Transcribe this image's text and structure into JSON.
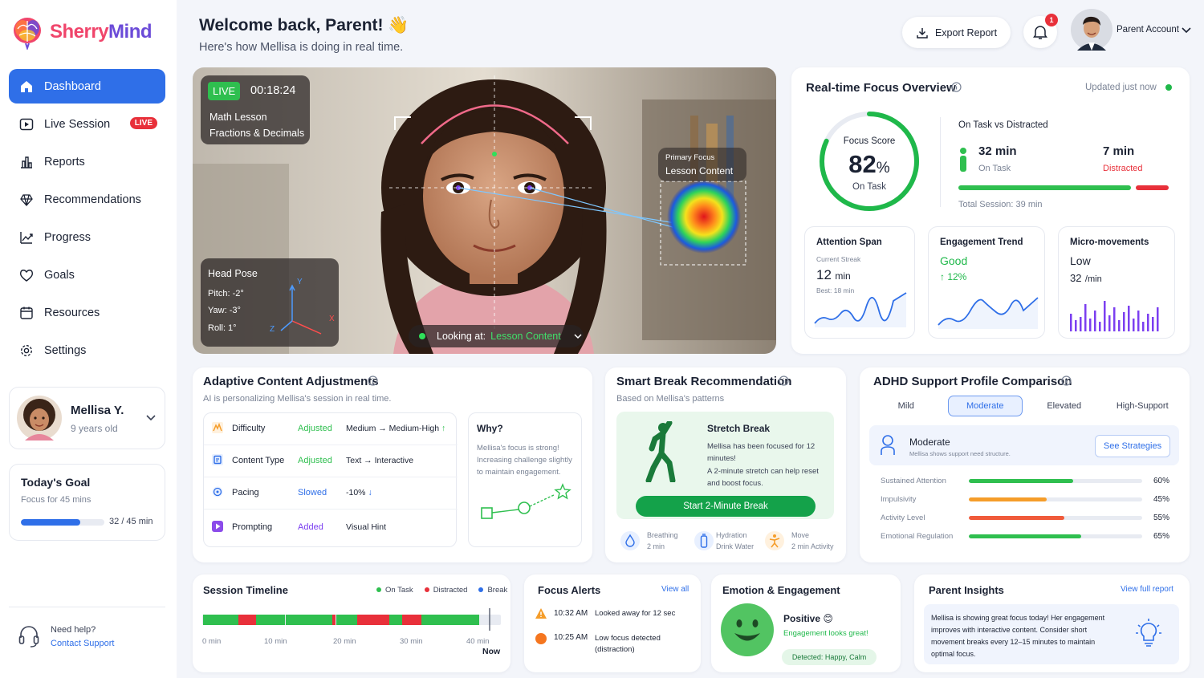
{
  "app": {
    "name_a": "Sherry",
    "name_b": "Mind"
  },
  "nav": {
    "dashboard": "Dashboard",
    "live_session": "Live Session",
    "live_badge": "LIVE",
    "reports": "Reports",
    "recommendations": "Recommendations",
    "progress": "Progress",
    "goals": "Goals",
    "resources": "Resources",
    "settings": "Settings"
  },
  "child": {
    "name": "Mellisa Y.",
    "age": "9 years old"
  },
  "today_goal": {
    "title": "Today's Goal",
    "subtitle": "Focus for 45 mins",
    "current": "32",
    "total": "/ 45 min",
    "progress": 0.71
  },
  "help": {
    "question": "Need help?",
    "link": "Contact Support"
  },
  "header": {
    "title": "Welcome back, Parent! 👋",
    "subtitle": "Here's how Mellisa is doing in real time.",
    "export": "Export Report",
    "notif_count": "1",
    "account": "Parent Account"
  },
  "video": {
    "live": "LIVE",
    "timer": "00:18:24",
    "lesson": "Math Lesson",
    "topic": "Fractions & Decimals",
    "primary_focus_label": "Primary Focus",
    "primary_focus_value": "Lesson Content",
    "head_pose_title": "Head Pose",
    "pitch": "Pitch: -2°",
    "yaw": "Yaw: -3°",
    "roll": "Roll: 1°",
    "axis_y": "Y",
    "axis_x": "X",
    "axis_z": "Z",
    "looking_label": "Looking at:",
    "looking_value": "Lesson Content"
  },
  "focus_overview": {
    "title": "Real-time Focus Overview",
    "updated": "Updated just now",
    "score_label": "Focus Score",
    "score": "82",
    "score_unit": "%",
    "score_fraction": 0.82,
    "score_state": "On Task",
    "vs_title": "On Task vs Distracted",
    "on_task_value": "32 min",
    "on_task_label": "On Task",
    "distracted_value": "7 min",
    "distracted_label": "Distracted",
    "on_task_fraction": 0.82,
    "total": "Total Session: 39 min"
  },
  "attention": {
    "title": "Attention Span",
    "streak_label": "Current Streak",
    "value": "12",
    "unit": "min",
    "best": "Best: 18 min"
  },
  "engagement": {
    "title": "Engagement Trend",
    "value": "Good",
    "change": "↑ 12%"
  },
  "micro": {
    "title": "Micro-movements",
    "value": "Low",
    "rate": "32",
    "rate_unit": "/min"
  },
  "adaptive": {
    "title": "Adaptive Content Adjustments",
    "subtitle": "AI is personalizing Mellisa's session in real time.",
    "rows": [
      {
        "label": "Difficulty",
        "status": "Adjusted",
        "value": "Medium → Medium-High",
        "arrow": "↑"
      },
      {
        "label": "Content Type",
        "status": "Adjusted",
        "value": "Text → Interactive",
        "arrow": ""
      },
      {
        "label": "Pacing",
        "status": "Slowed",
        "value": "-10%",
        "arrow": "↓"
      },
      {
        "label": "Prompting",
        "status": "Added",
        "value": "Visual Hint",
        "arrow": ""
      }
    ],
    "why_title": "Why?",
    "why_text": "Mellisa's focus is strong! Increasing challenge slightly to maintain engagement."
  },
  "smart_break": {
    "title": "Smart Break Recommendation",
    "subtitle": "Based on Mellisa's patterns",
    "card_title": "Stretch Break",
    "card_text1": "Mellisa has been focused for 12 minutes!",
    "card_text2": "A 2-minute stretch can help reset and boost focus.",
    "button": "Start 2-Minute Break",
    "options": [
      {
        "title": "Breathing",
        "sub": "2 min"
      },
      {
        "title": "Hydration",
        "sub": "Drink Water"
      },
      {
        "title": "Move",
        "sub": "2 min Activity"
      }
    ]
  },
  "adhd": {
    "title": "ADHD Support Profile Comparison",
    "tabs": [
      "Mild",
      "Moderate",
      "Elevated",
      "High-Support"
    ],
    "selected": "Moderate",
    "profile_desc": "Mellisa shows support need structure.",
    "see_strategies": "See Strategies",
    "metrics": [
      {
        "label": "Sustained Attention",
        "value": "60%",
        "fraction": 0.6,
        "color": "#2fbf4f"
      },
      {
        "label": "Impulsivity",
        "value": "45%",
        "fraction": 0.45,
        "color": "#f59d2a"
      },
      {
        "label": "Activity Level",
        "value": "55%",
        "fraction": 0.55,
        "color": "#f05a3a"
      },
      {
        "label": "Emotional Regulation",
        "value": "65%",
        "fraction": 0.65,
        "color": "#2fbf4f"
      }
    ]
  },
  "timeline": {
    "title": "Session Timeline",
    "legend": {
      "on_task": "On Task",
      "distracted": "Distracted",
      "break": "Break"
    },
    "ticks": [
      "0 min",
      "10 min",
      "20 min",
      "30 min",
      "40 min"
    ],
    "now": "Now"
  },
  "alerts": {
    "title": "Focus Alerts",
    "view_all": "View all",
    "items": [
      {
        "time": "10:32 AM",
        "text": "Looked away for 12 sec"
      },
      {
        "time": "10:25 AM",
        "text": "Low focus detected (distraction)"
      }
    ]
  },
  "emotion": {
    "title": "Emotion & Engagement",
    "state": "Positive 😊",
    "note": "Engagement looks great!",
    "detected": "Detected: Happy, Calm"
  },
  "insights": {
    "title": "Parent Insights",
    "link": "View full report",
    "text": "Mellisa is showing great focus today! Her engagement improves with interactive content. Consider short movement breaks every 12–15 minutes to maintain optimal focus."
  },
  "colors": {
    "primary": "#2f6fe8",
    "green": "#1fb84a",
    "red": "#e8303a",
    "orange": "#f59d2a"
  }
}
